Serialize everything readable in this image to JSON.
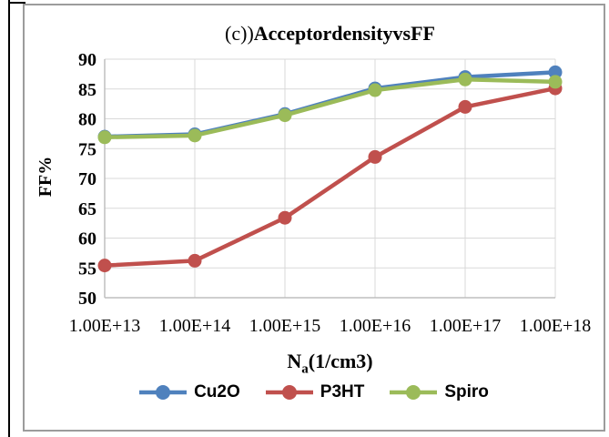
{
  "chart_data": {
    "type": "line",
    "title_prefix": "(c))",
    "title_bold": "AcceptordensityvsFF",
    "x_axis_label": {
      "main": "N",
      "sub": "a",
      "rest": "(1/cm3)"
    },
    "y_axis_label": "FF%",
    "categories": [
      "1.00E+13",
      "1.00E+14",
      "1.00E+15",
      "1.00E+16",
      "1.00E+17",
      "1.00E+18"
    ],
    "series": [
      {
        "name": "Cu2O",
        "color": "#4F81BD",
        "values": [
          77.0,
          77.4,
          80.8,
          85.1,
          87.0,
          87.8
        ]
      },
      {
        "name": "P3HT",
        "color": "#C0504D",
        "values": [
          55.4,
          56.2,
          63.4,
          73.6,
          82.0,
          85.1
        ]
      },
      {
        "name": "Spiro",
        "color": "#9BBB59",
        "values": [
          76.9,
          77.2,
          80.6,
          84.8,
          86.6,
          86.2
        ]
      }
    ],
    "ylim": [
      50,
      90
    ],
    "ytick_step": 5,
    "yticks": [
      "90",
      "85",
      "80",
      "75",
      "70",
      "65",
      "60",
      "55",
      "50"
    ],
    "grid": true,
    "legend_position": "bottom",
    "marker": "circle",
    "colors": {
      "gridline": "#D9D9D9",
      "axis": "#BFBFBF",
      "frame_border": "#9C9C9C",
      "text": "#000000"
    }
  }
}
